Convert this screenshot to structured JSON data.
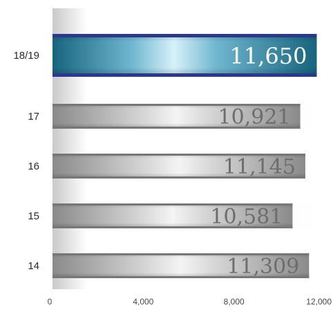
{
  "chart_data": {
    "type": "bar",
    "orientation": "horizontal",
    "categories": [
      "18/19",
      "17",
      "16",
      "15",
      "14"
    ],
    "values": [
      11650,
      10921,
      11145,
      10581,
      11309
    ],
    "value_labels": [
      "11,650",
      "10,921",
      "11,145",
      "10,581",
      "11,309"
    ],
    "highlight_category": "18/19",
    "xlim": [
      0,
      12000
    ],
    "x_ticks": [
      0,
      4000,
      8000,
      12000
    ],
    "x_tick_labels": [
      "0",
      "4,000",
      "8,000",
      "12,000"
    ],
    "grid": false,
    "colors": {
      "highlight_mid": "#bfe6f5",
      "highlight_edge": "#1a6a87",
      "highlight_border": "#2a3890",
      "bar_mid": "#f3f3f3",
      "bar_edge": "#8a8a8a",
      "bar_border": "#777777"
    }
  }
}
